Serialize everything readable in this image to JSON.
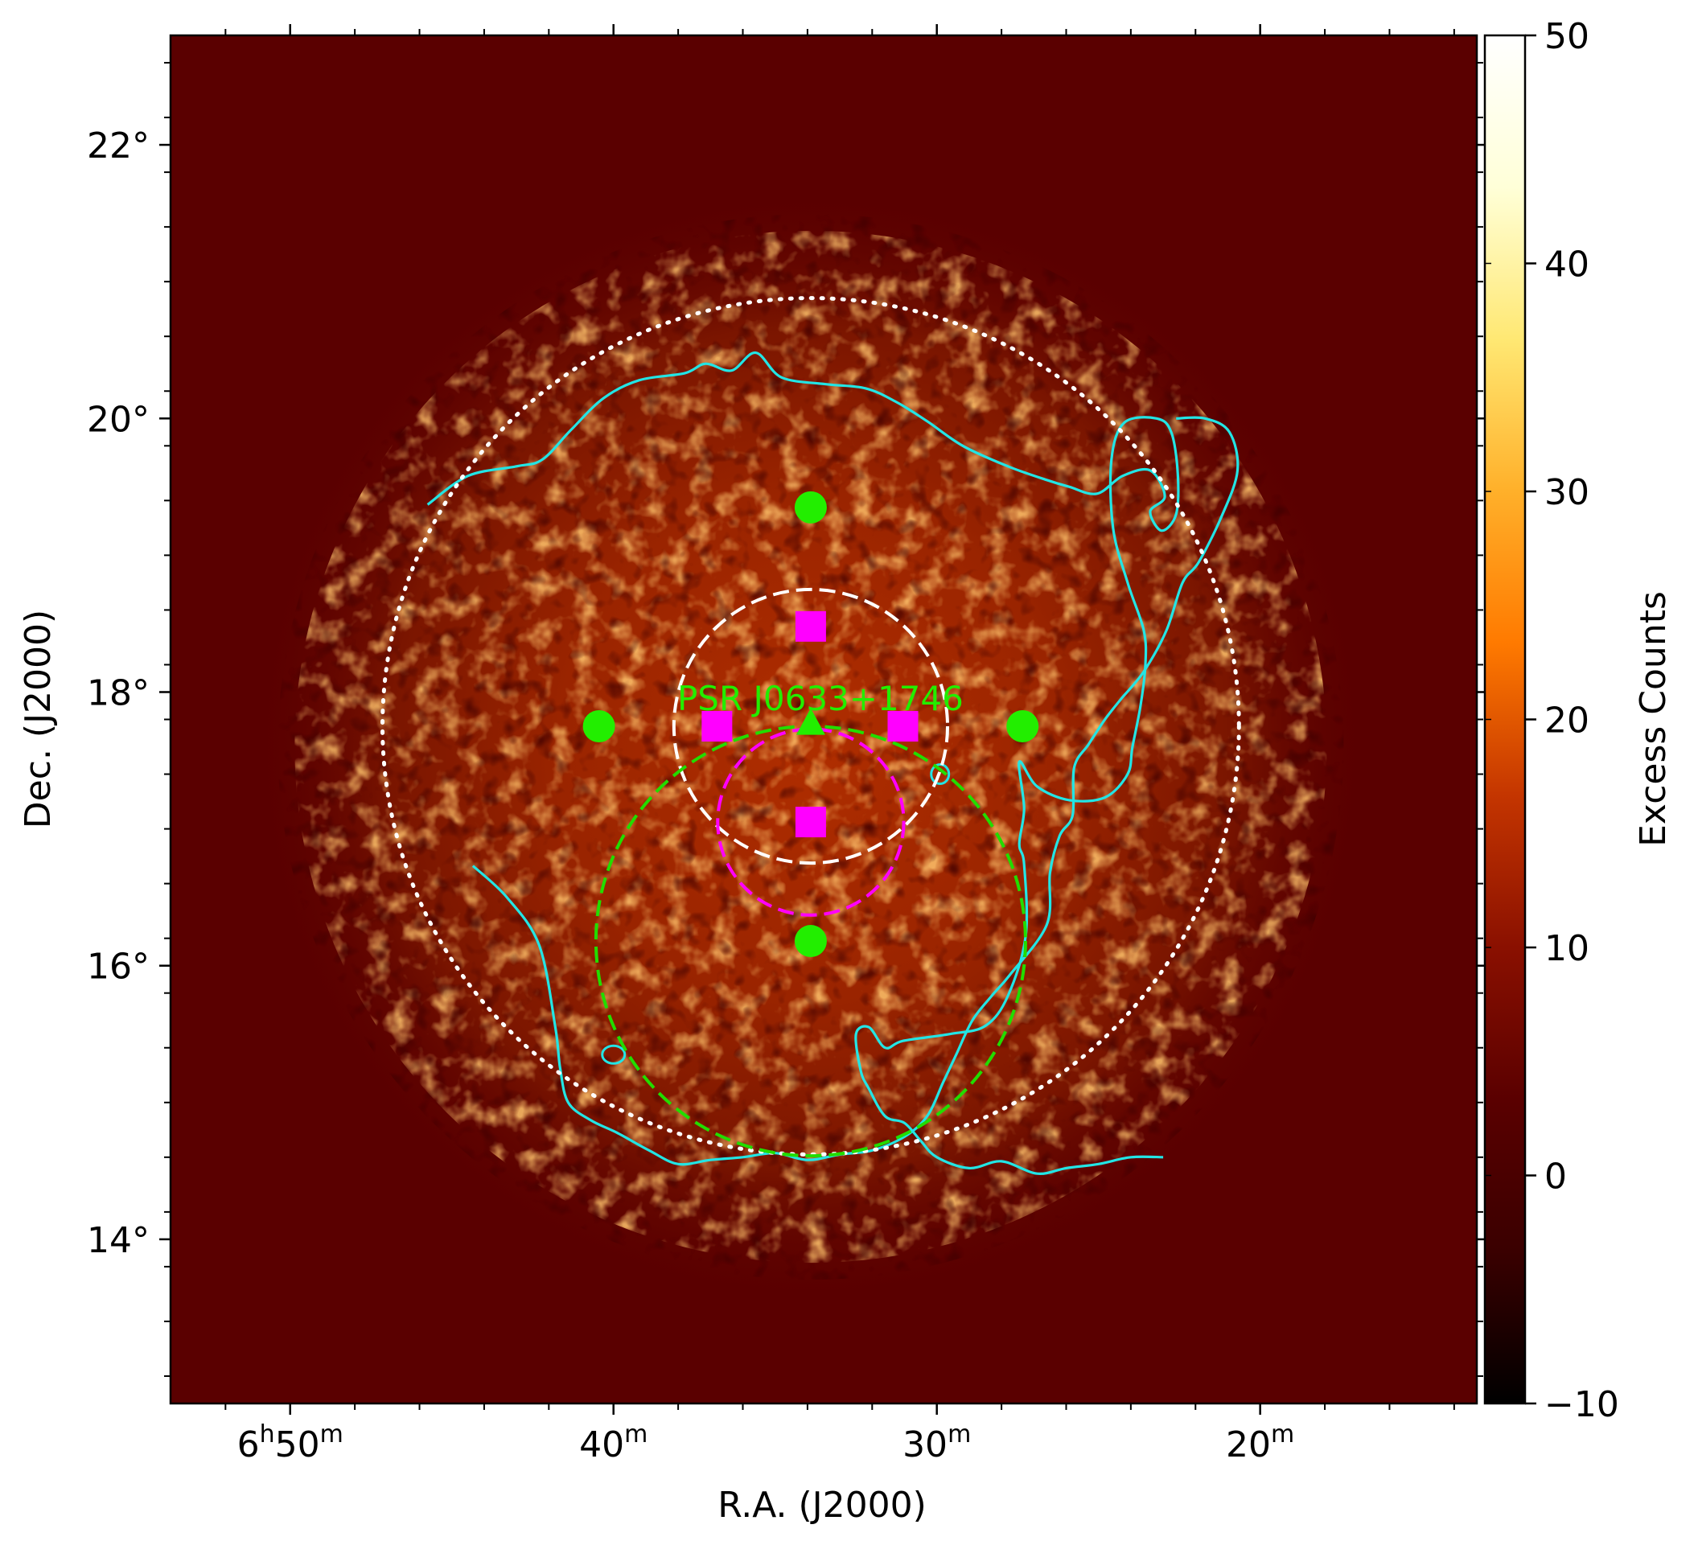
{
  "chart_data": {
    "type": "heatmap",
    "title": "",
    "xlabel": "R.A. (J2000)",
    "ylabel": "Dec. (J2000)",
    "x_axis": {
      "unit": "RA minutes of time past 6h",
      "lim": [
        53.7,
        13.3
      ],
      "inverted": true,
      "ticks": [
        {
          "value": 50,
          "label": "6h50m",
          "hour": "6",
          "min": "50"
        },
        {
          "value": 40,
          "label": "40m",
          "hour": "",
          "min": "40"
        },
        {
          "value": 30,
          "label": "30m",
          "hour": "",
          "min": "30"
        },
        {
          "value": 20,
          "label": "20m",
          "hour": "",
          "min": "20"
        }
      ]
    },
    "y_axis": {
      "unit": "deg",
      "lim": [
        12.8,
        22.8
      ],
      "ticks": [
        {
          "value": 22,
          "label": "22°"
        },
        {
          "value": 20,
          "label": "20°"
        },
        {
          "value": 18,
          "label": "18°"
        },
        {
          "value": 16,
          "label": "16°"
        },
        {
          "value": 14,
          "label": "14°"
        }
      ]
    },
    "colorbar": {
      "label": "Excess Counts",
      "range": [
        -10,
        50
      ],
      "ticks": [
        50,
        40,
        30,
        20,
        10,
        0,
        -10
      ],
      "tick_labels": [
        "50",
        "40",
        "30",
        "20",
        "10",
        "0",
        "−10"
      ],
      "colormap": [
        "#000000",
        "#3a0000",
        "#5a0000",
        "#8a1000",
        "#c43500",
        "#ff7a00",
        "#ffb02a",
        "#ffe873",
        "#ffffd8",
        "#ffffff"
      ]
    },
    "background_color": "#5a0000",
    "emission_region": {
      "center": [
        33.9,
        17.6
      ],
      "radius_deg": 4.1
    },
    "circles": [
      {
        "name": "outer-dotted",
        "center": [
          33.9,
          17.75
        ],
        "radius_deg": 3.13,
        "style": "dotted",
        "color": "#ffffff"
      },
      {
        "name": "inner-dashed-white",
        "center": [
          33.9,
          17.75
        ],
        "radius_deg": 1.0,
        "style": "dashed",
        "color": "#ffffff"
      },
      {
        "name": "dashed-green",
        "center": [
          33.9,
          16.18
        ],
        "radius_deg": 1.57,
        "style": "dashed",
        "color": "#22dd00"
      },
      {
        "name": "dashed-magenta",
        "center": [
          33.9,
          17.05
        ],
        "radius_deg": 0.68,
        "style": "dashed",
        "color": "#ff00ff"
      }
    ],
    "markers": [
      {
        "name": "green-dot-top",
        "shape": "circle",
        "ra": 33.9,
        "dec": 19.35,
        "color": "#22ee00"
      },
      {
        "name": "green-dot-left",
        "shape": "circle",
        "ra": 40.45,
        "dec": 17.75,
        "color": "#22ee00"
      },
      {
        "name": "green-dot-right",
        "shape": "circle",
        "ra": 27.35,
        "dec": 17.75,
        "color": "#22ee00"
      },
      {
        "name": "green-dot-bottom",
        "shape": "circle",
        "ra": 33.9,
        "dec": 16.18,
        "color": "#22ee00"
      },
      {
        "name": "psr-triangle",
        "shape": "triangle",
        "ra": 33.9,
        "dec": 17.77,
        "color": "#22ee00"
      },
      {
        "name": "magenta-square-top",
        "shape": "square",
        "ra": 33.9,
        "dec": 18.48,
        "color": "#ff00ff"
      },
      {
        "name": "magenta-square-left",
        "shape": "square",
        "ra": 36.8,
        "dec": 17.75,
        "color": "#ff00ff"
      },
      {
        "name": "magenta-square-right",
        "shape": "square",
        "ra": 31.05,
        "dec": 17.75,
        "color": "#ff00ff"
      },
      {
        "name": "magenta-square-bottom",
        "shape": "square",
        "ra": 33.9,
        "dec": 17.05,
        "color": "#ff00ff"
      }
    ],
    "annotations": [
      {
        "text": "PSR J0633+1746",
        "ra": 33.9,
        "dec": 17.95,
        "color": "#22ee00"
      }
    ],
    "contours": [
      {
        "name": "outer-contour",
        "color": "#22e5e5",
        "points": [
          [
            45.75,
            19.37
          ],
          [
            44.5,
            19.58
          ],
          [
            43.0,
            19.65
          ],
          [
            42.2,
            19.7
          ],
          [
            41.3,
            19.92
          ],
          [
            40.3,
            20.15
          ],
          [
            39.2,
            20.28
          ],
          [
            37.8,
            20.33
          ],
          [
            37.15,
            20.4
          ],
          [
            36.35,
            20.35
          ],
          [
            35.6,
            20.48
          ],
          [
            34.8,
            20.3
          ],
          [
            33.4,
            20.25
          ],
          [
            32.2,
            20.22
          ],
          [
            31.25,
            20.12
          ],
          [
            30.3,
            19.98
          ],
          [
            29.2,
            19.8
          ],
          [
            27.8,
            19.65
          ],
          [
            26.6,
            19.55
          ],
          [
            25.9,
            19.5
          ],
          [
            25.05,
            19.45
          ],
          [
            24.25,
            19.58
          ],
          [
            23.4,
            19.62
          ],
          [
            22.95,
            19.43
          ],
          [
            23.4,
            19.32
          ],
          [
            23.05,
            19.18
          ],
          [
            22.6,
            19.3
          ],
          [
            22.55,
            19.6
          ],
          [
            22.75,
            19.9
          ],
          [
            23.2,
            20.0
          ],
          [
            24.2,
            19.97
          ],
          [
            24.6,
            19.7
          ],
          [
            24.55,
            19.2
          ],
          [
            24.1,
            18.8
          ],
          [
            23.6,
            18.45
          ],
          [
            23.55,
            18.2
          ],
          [
            23.7,
            17.9
          ],
          [
            23.95,
            17.6
          ],
          [
            24.1,
            17.4
          ],
          [
            24.8,
            17.23
          ],
          [
            25.9,
            17.21
          ],
          [
            26.9,
            17.31
          ],
          [
            27.45,
            17.49
          ],
          [
            27.3,
            17.15
          ],
          [
            27.45,
            16.89
          ],
          [
            27.3,
            16.74
          ],
          [
            27.25,
            16.22
          ],
          [
            27.8,
            15.78
          ],
          [
            28.5,
            15.56
          ],
          [
            29.6,
            15.5
          ],
          [
            31.05,
            15.45
          ],
          [
            31.6,
            15.4
          ],
          [
            32.1,
            15.55
          ],
          [
            32.5,
            15.5
          ],
          [
            32.35,
            15.23
          ],
          [
            32.1,
            15.1
          ],
          [
            31.6,
            14.9
          ],
          [
            31.0,
            14.85
          ],
          [
            30.5,
            14.72
          ],
          [
            30.0,
            14.6
          ],
          [
            29.0,
            14.52
          ],
          [
            28.0,
            14.57
          ],
          [
            26.9,
            14.48
          ],
          [
            26.0,
            14.52
          ],
          [
            25.0,
            14.55
          ],
          [
            24.0,
            14.6
          ],
          [
            23.0,
            14.6
          ]
        ]
      },
      {
        "name": "inner-contour",
        "color": "#22e5e5",
        "points": [
          [
            44.35,
            16.73
          ],
          [
            43.3,
            16.5
          ],
          [
            42.3,
            16.15
          ],
          [
            41.8,
            15.55
          ],
          [
            41.65,
            15.25
          ],
          [
            41.4,
            15.0
          ],
          [
            40.7,
            14.87
          ],
          [
            39.9,
            14.78
          ],
          [
            38.9,
            14.65
          ],
          [
            38.0,
            14.55
          ],
          [
            37.0,
            14.58
          ],
          [
            36.0,
            14.6
          ],
          [
            35.0,
            14.63
          ],
          [
            34.0,
            14.58
          ],
          [
            33.0,
            14.62
          ],
          [
            32.0,
            14.65
          ],
          [
            31.0,
            14.75
          ],
          [
            30.3,
            14.9
          ],
          [
            29.8,
            15.15
          ],
          [
            29.4,
            15.35
          ],
          [
            28.9,
            15.6
          ],
          [
            28.3,
            15.78
          ],
          [
            27.75,
            15.93
          ],
          [
            26.6,
            16.3
          ],
          [
            26.5,
            16.68
          ],
          [
            26.2,
            16.95
          ],
          [
            25.8,
            17.1
          ],
          [
            25.75,
            17.45
          ],
          [
            25.3,
            17.62
          ],
          [
            24.8,
            17.8
          ],
          [
            24.3,
            17.95
          ],
          [
            23.6,
            18.15
          ],
          [
            22.9,
            18.45
          ],
          [
            22.4,
            18.8
          ],
          [
            21.9,
            18.95
          ],
          [
            21.2,
            19.28
          ],
          [
            20.7,
            19.62
          ],
          [
            20.95,
            19.9
          ],
          [
            21.7,
            20.0
          ],
          [
            22.6,
            20.0
          ]
        ]
      }
    ]
  }
}
